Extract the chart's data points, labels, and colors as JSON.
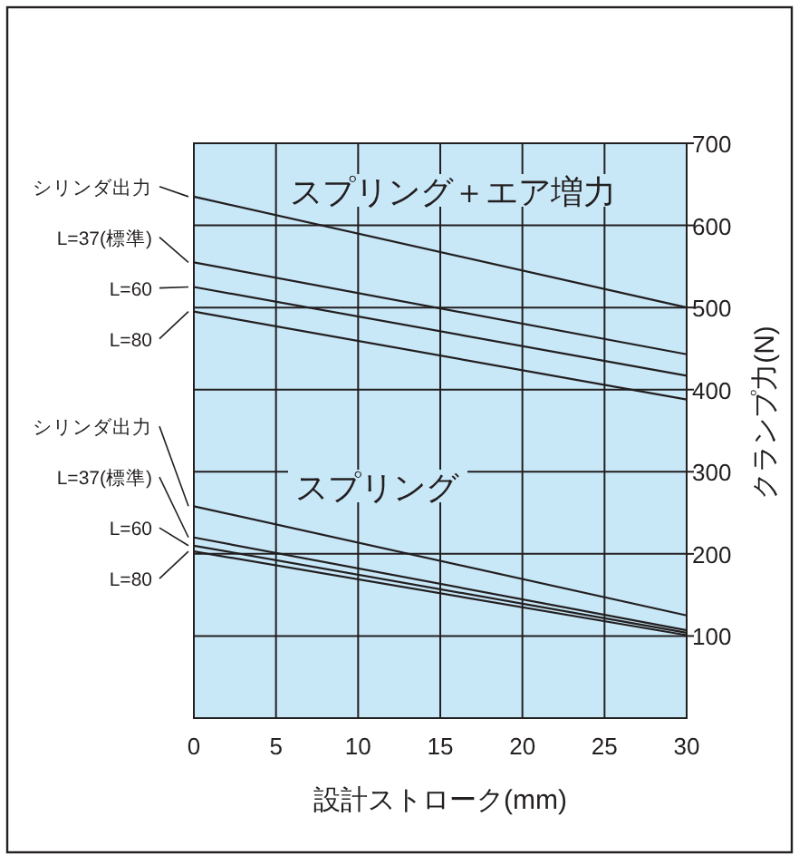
{
  "chart_data": {
    "type": "line",
    "xlabel": "設計ストローク(mm)",
    "ylabel": "クランプ力(N)",
    "x": [
      0,
      30
    ],
    "xlim": [
      0,
      30
    ],
    "xticks": [
      0,
      5,
      10,
      15,
      20,
      25,
      30
    ],
    "ylim": [
      0,
      700
    ],
    "yticks": [
      100,
      200,
      300,
      400,
      500,
      600,
      700
    ],
    "grid": true,
    "legend": "left",
    "marker": "none",
    "line_style": "solid",
    "series": [
      {
        "name": "シリンダ出力",
        "color": "#231f20",
        "values": [
          635,
          500
        ]
      },
      {
        "name": "L=37(標準)",
        "color": "#231f20",
        "values": [
          555,
          443
        ]
      },
      {
        "name": "L=60",
        "color": "#231f20",
        "values": [
          525,
          417
        ]
      },
      {
        "name": "L=80",
        "color": "#231f20",
        "values": [
          495,
          388
        ]
      },
      {
        "name": "シリンダ出力",
        "color": "#231f20",
        "values": [
          258,
          125
        ]
      },
      {
        "name": "L=37(標準)",
        "color": "#231f20",
        "values": [
          220,
          107
        ]
      },
      {
        "name": "L=60",
        "color": "#231f20",
        "values": [
          210,
          104
        ]
      },
      {
        "name": "L=80",
        "color": "#231f20",
        "values": [
          203,
          101
        ]
      }
    ],
    "annotations": [
      "スプリング＋エア増力",
      "スプリング"
    ]
  }
}
